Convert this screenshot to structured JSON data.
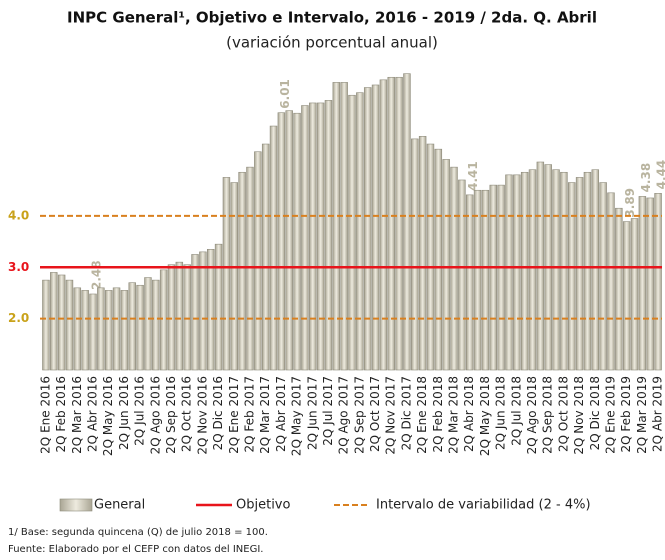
{
  "chart_data": {
    "type": "bar",
    "title": "INPC General¹, Objetivo e Intervalo, 2016 - 2019 / 2da. Q. Abril",
    "subtitle": "(variación porcentual anual)",
    "categories": [
      "2Q Ene 2016",
      null,
      "2Q Feb 2016",
      null,
      "2Q Mar 2016",
      null,
      "2Q Abr 2016",
      null,
      "2Q May 2016",
      null,
      "2Q Jun 2016",
      null,
      "2Q Jul 2016",
      null,
      "2Q Ago 2016",
      null,
      "2Q Sep 2016",
      null,
      "2Q Oct 2016",
      null,
      "2Q Nov 2016",
      null,
      "2Q Dic 2016",
      null,
      "2Q Ene 2017",
      null,
      "2Q Feb 2017",
      null,
      "2Q Mar 2017",
      null,
      "2Q Abr 2017",
      null,
      "2Q May 2017",
      null,
      "2Q Jun 2017",
      null,
      "2Q Jul 2017",
      null,
      "2Q Ago 2017",
      null,
      "2Q Sep 2017",
      null,
      "2Q Oct 2017",
      null,
      "2Q Nov 2017",
      null,
      "2Q Dic 2017",
      null,
      "2Q Ene 2018",
      null,
      "2Q Feb 2018",
      null,
      "2Q Mar 2018",
      null,
      "2Q Abr 2018",
      null,
      "2Q May 2018",
      null,
      "2Q Jun 2018",
      null,
      "2Q Jul 2018",
      null,
      "2Q Ago 2018",
      null,
      "2Q Sep 2018",
      null,
      "2Q Oct 2018",
      null,
      "2Q Nov 2018",
      null,
      "2Q Dic 2018",
      null,
      "2Q Ene 2019",
      null,
      "2Q Feb 2019",
      null,
      "2Q Mar 2019",
      null,
      "2Q Abr 2019"
    ],
    "series": [
      {
        "name": "General",
        "color": "#d9d5c5",
        "values": [
          2.75,
          2.9,
          2.85,
          2.75,
          2.6,
          2.55,
          2.48,
          2.6,
          2.55,
          2.6,
          2.55,
          2.7,
          2.65,
          2.8,
          2.75,
          2.95,
          3.05,
          3.1,
          3.05,
          3.25,
          3.3,
          3.35,
          3.45,
          4.75,
          4.65,
          4.85,
          4.95,
          5.25,
          5.4,
          5.75,
          6.01,
          6.05,
          6.0,
          6.15,
          6.2,
          6.2,
          6.25,
          6.6,
          6.6,
          6.35,
          6.4,
          6.5,
          6.55,
          6.65,
          6.7,
          6.7,
          6.77,
          5.5,
          5.55,
          5.4,
          5.3,
          5.1,
          4.95,
          4.7,
          4.41,
          4.5,
          4.5,
          4.6,
          4.6,
          4.8,
          4.8,
          4.85,
          4.9,
          5.05,
          5.0,
          4.9,
          4.85,
          4.65,
          4.75,
          4.85,
          4.9,
          4.65,
          4.45,
          4.15,
          3.89,
          3.95,
          4.38,
          4.35,
          4.44
        ],
        "value_labels": [
          null,
          null,
          null,
          null,
          null,
          null,
          "2.48",
          null,
          null,
          null,
          null,
          null,
          null,
          null,
          null,
          null,
          null,
          null,
          null,
          null,
          null,
          null,
          null,
          null,
          null,
          null,
          null,
          null,
          null,
          null,
          "6.01",
          null,
          null,
          null,
          null,
          null,
          null,
          null,
          null,
          null,
          null,
          null,
          null,
          null,
          null,
          null,
          null,
          null,
          null,
          null,
          null,
          null,
          null,
          null,
          "4.41",
          null,
          null,
          null,
          null,
          null,
          null,
          null,
          null,
          null,
          null,
          null,
          null,
          null,
          null,
          null,
          null,
          null,
          null,
          null,
          "3.89",
          null,
          "4.38",
          null,
          "4.44"
        ]
      }
    ],
    "objetivo": {
      "name": "Objetivo",
      "value": 3,
      "label": "3.0",
      "color": "#e8141b"
    },
    "intervalo": {
      "name": "Intervalo de variabilidad (2 - 4%)",
      "values": [
        2,
        4
      ],
      "labels": [
        "2.0",
        "4.0"
      ],
      "color": "#d9801f"
    },
    "ylim": [
      1.0,
      6.9
    ],
    "footnotes": [
      "1/ Base: segunda quincena (Q) de julio 2018 = 100.",
      "Fuente: Elaborado por el CEFP con datos del INEGI."
    ]
  }
}
